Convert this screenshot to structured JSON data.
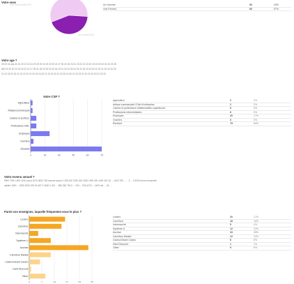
{
  "sex_section": {
    "title": "Votre sexe",
    "legend": [
      {
        "label": "Un Homme",
        "value": 50,
        "pct": "43%",
        "color": "#8a1fb0"
      },
      {
        "label": "Une Femme",
        "value": 66,
        "pct": "57%",
        "color": "#efcbf3"
      }
    ],
    "pie_label_femme": "Une Femme (66) 57%",
    "pie_label_homme": "Un Homme (50)"
  },
  "age_section": {
    "title": "Votre age ?",
    "rows": [
      "25  23  24 ans  24  31  20  21  22  24  23  29  20  24  23  23  29  21  27  30  22  20  23  21  23  22  21  23  20  24  23  25  20  24  24  23  28",
      "NM  22  20  22  22  23  24  22  21  27  25  21  26  22  25  23  20  24  23  21  24  22  25  24  23  21  20  22  23  20  22  23  21  20  22  24  25",
      "21  22  23  20  24  21  23  22  22  21  20  23  24  22  21  23  22  20  21  23  22  24  20  21  22  23  21  20  22  24  23  21  22  20"
    ]
  },
  "csp_section": {
    "title": "Votre CSP ?",
    "chart_data": {
      "type": "bar",
      "orientation": "horizontal",
      "categories": [
        "Agriculteur",
        "Artisan/commerçant",
        "Cadres et profess.",
        "Professions inter.",
        "Employés",
        "Ouvriers",
        "Étudiant"
      ],
      "values": [
        2,
        2,
        6,
        6,
        20,
        3,
        75
      ],
      "xticks": [
        "0",
        "15",
        "30",
        "45",
        "60",
        "75"
      ],
      "xlim": [
        0,
        75
      ],
      "color": "#7b7bf0"
    },
    "table": [
      {
        "label": "Agriculteur",
        "value": "2",
        "pct": "2%"
      },
      {
        "label": "Artisan commerçant /Chef d'entreprise",
        "value": "2",
        "pct": "2%"
      },
      {
        "label": "Cadres et professions intellectuelles supérieures",
        "value": "6",
        "pct": "5%"
      },
      {
        "label": "Professions intermédiaires",
        "value": "6",
        "pct": "5%"
      },
      {
        "label": "Employés",
        "value": "20",
        "pct": "17%"
      },
      {
        "label": "Ouvriers",
        "value": "3",
        "pct": "3%"
      },
      {
        "label": "Étudiant",
        "value": "75",
        "pct": "65%"
      }
    ]
  },
  "revenu_section": {
    "title": "Votre revenu annuel ?",
    "rows": [
      "9000   7000   1300  2100 euros  4276   3600   738   aucune   aucun   1.255   400   2300   400   2300   1900   400   1400   400   18   ...   1000   750   ...   ...   0   ...   0   4200 euros mensuelle",
      "salaire   1600   ...   3000   2000   420.00   467   0   1600   0   410   ...   580   350   750   0   ...   200   ...   900   4276   ...   1400 net   ...   18   ..."
    ]
  },
  "enseigne_section": {
    "title": "Parmi ces enseignes, laquelle fréquentez-vous le plus ?",
    "chart_data": {
      "type": "bar",
      "orientation": "horizontal",
      "categories": [
        "Leclerc",
        "Carrefour",
        "Intermarché",
        "Système U",
        "Auchan",
        "Carrefour Market",
        "Casino/Géant Casino",
        "Hard Discount",
        "Other"
      ],
      "values": [
        20,
        18,
        5,
        12,
        33,
        12,
        6,
        1,
        9
      ],
      "xticks": [
        "0",
        "7",
        "14",
        "21",
        "28",
        "35"
      ],
      "xlim": [
        0,
        35
      ],
      "color": "#f5a623",
      "color_light": "#fbd48c"
    },
    "table": [
      {
        "label": "Leclerc",
        "value": "20",
        "pct": "17%"
      },
      {
        "label": "Carrefour",
        "value": "18",
        "pct": "16%"
      },
      {
        "label": "Intermarché",
        "value": "5",
        "pct": "4%"
      },
      {
        "label": "Système U",
        "value": "12",
        "pct": "10%"
      },
      {
        "label": "Auchan",
        "value": "33",
        "pct": "28%"
      },
      {
        "label": "Carrefour Market",
        "value": "12",
        "pct": "10%"
      },
      {
        "label": "Casino/Géant Casino",
        "value": "6",
        "pct": "5%"
      },
      {
        "label": "Hard Discount",
        "value": "1",
        "pct": "1%"
      },
      {
        "label": "Other",
        "value": "9",
        "pct": "8%"
      }
    ]
  }
}
